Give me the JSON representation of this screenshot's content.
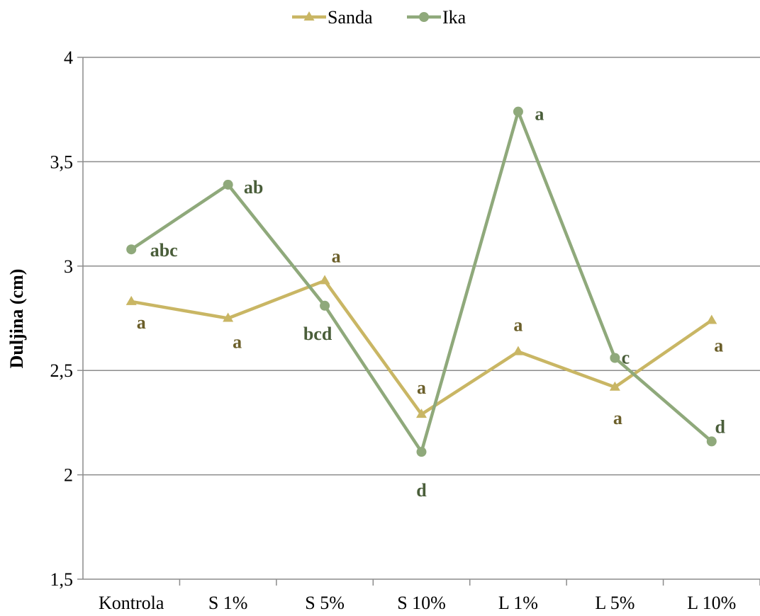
{
  "chart_data": {
    "type": "line",
    "categories": [
      "Kontrola",
      "S 1%",
      "S 5%",
      "S 10%",
      "L 1%",
      "L 5%",
      "L 10%"
    ],
    "ylabel": "Duljina (cm)",
    "ylim": [
      1.5,
      4
    ],
    "yticks": [
      1.5,
      2,
      2.5,
      3,
      3.5,
      4
    ],
    "ytick_labels": [
      "1,5",
      "2",
      "2,5",
      "3",
      "3,5",
      "4"
    ],
    "grid": true,
    "legend_position": "top-center",
    "series": [
      {
        "name": "Sanda",
        "marker": "triangle",
        "color": "#C9B664",
        "label_color": "#6B5F2A",
        "values": [
          2.83,
          2.75,
          2.93,
          2.29,
          2.59,
          2.42,
          2.74
        ],
        "labels": [
          "a",
          "a",
          "a",
          "a",
          "a",
          "a",
          "a"
        ]
      },
      {
        "name": "Ika",
        "marker": "circle",
        "color": "#8FA97B",
        "label_color": "#4A5E3A",
        "values": [
          3.08,
          3.39,
          2.81,
          2.11,
          3.74,
          2.56,
          2.16
        ],
        "labels": [
          "abc",
          "ab",
          "bcd",
          "d",
          "a",
          "c",
          "d"
        ]
      }
    ]
  }
}
